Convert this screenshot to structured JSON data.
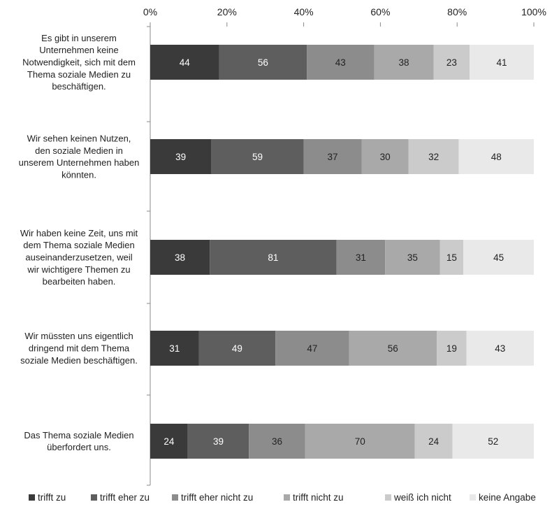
{
  "chart_data": {
    "type": "bar",
    "orientation": "horizontal",
    "stacked_percent": true,
    "title": "",
    "xlabel": "",
    "ylabel": "",
    "xlim": [
      0,
      100
    ],
    "x_ticks": [
      "0%",
      "20%",
      "40%",
      "60%",
      "80%",
      "100%"
    ],
    "legend_position": "bottom",
    "grid": false,
    "categories": [
      "Es gibt in unserem Unternehmen keine Notwendigkeit, sich mit dem Thema soziale Medien zu beschäftigen.",
      "Wir sehen keinen Nutzen, den soziale Medien in unserem Unternehmen haben könnten.",
      "Wir haben keine Zeit, uns mit dem Thema soziale Medien auseinanderzusetzen, weil wir wichtigere Themen zu bearbeiten haben.",
      "Wir müssten uns eigentlich dringend mit dem Thema soziale Medien beschäftigen.",
      "Das Thema soziale Medien überfordert uns."
    ],
    "category_label_lines": [
      [
        "Es gibt in unserem",
        "Unternehmen keine",
        "Notwendigkeit, sich mit dem",
        "Thema soziale Medien zu",
        "beschäftigen."
      ],
      [
        "Wir sehen keinen Nutzen,",
        "den soziale Medien in",
        "unserem Unternehmen haben",
        "könnten."
      ],
      [
        "Wir haben keine Zeit, uns mit",
        "dem Thema soziale Medien",
        "auseinanderzusetzen, weil",
        "wir wichtigere Themen zu",
        "bearbeiten haben."
      ],
      [
        "Wir müssten uns eigentlich",
        "dringend mit dem Thema",
        "soziale Medien beschäftigen."
      ],
      [
        "Das Thema soziale Medien",
        "überfordert uns."
      ]
    ],
    "series": [
      {
        "name": "trifft zu",
        "color": "#3a3a3a",
        "label_color": "#ffffff",
        "values": [
          44,
          39,
          38,
          31,
          24
        ]
      },
      {
        "name": "trifft eher zu",
        "color": "#5e5e5e",
        "label_color": "#ffffff",
        "values": [
          56,
          59,
          81,
          49,
          39
        ]
      },
      {
        "name": "trifft eher nicht zu",
        "color": "#8c8c8c",
        "label_color": "#222222",
        "values": [
          43,
          37,
          31,
          47,
          36
        ]
      },
      {
        "name": "trifft nicht zu",
        "color": "#a9a9a9",
        "label_color": "#222222",
        "values": [
          38,
          30,
          35,
          56,
          70
        ]
      },
      {
        "name": "weiß ich nicht",
        "color": "#cbcbcb",
        "label_color": "#222222",
        "values": [
          23,
          32,
          15,
          19,
          24
        ]
      },
      {
        "name": "keine Angabe",
        "color": "#e9e9e9",
        "label_color": "#222222",
        "values": [
          41,
          48,
          45,
          43,
          52
        ]
      }
    ]
  }
}
